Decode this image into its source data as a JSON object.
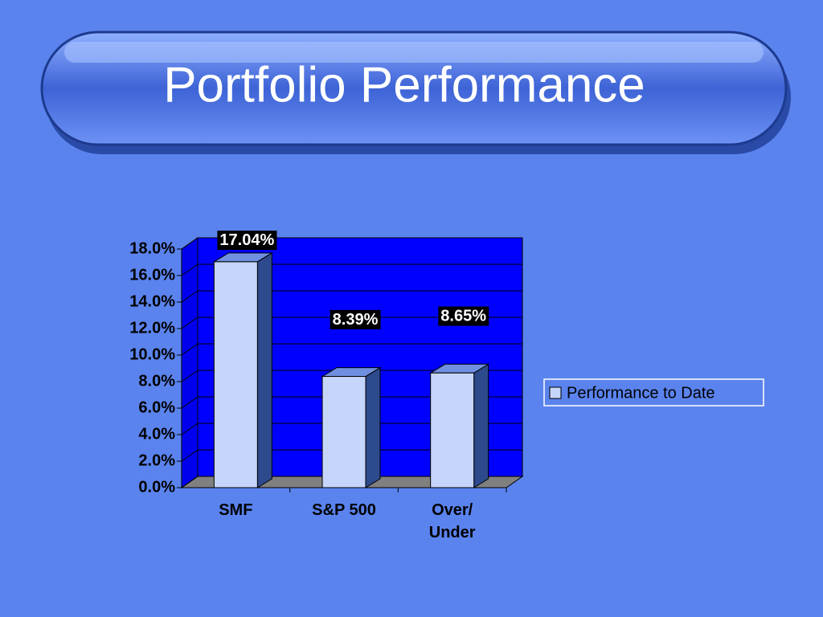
{
  "chart_data": {
    "type": "bar3d",
    "title": "Portfolio Performance",
    "categories": [
      "SMF",
      "S&P 500",
      "Over/ Under"
    ],
    "series": [
      {
        "name": "Performance to Date",
        "color": "#c6d5fb",
        "values": [
          17.04,
          8.39,
          8.65
        ],
        "value_labels": [
          "17.04%",
          "8.39%",
          "8.65%"
        ]
      }
    ],
    "ylim": [
      0,
      18
    ],
    "yticks": [
      {
        "value": 0,
        "label": "0.0%"
      },
      {
        "value": 2,
        "label": "2.0%"
      },
      {
        "value": 4,
        "label": "4.0%"
      },
      {
        "value": 6,
        "label": "6.0%"
      },
      {
        "value": 8,
        "label": "8.0%"
      },
      {
        "value": 10,
        "label": "10.0%"
      },
      {
        "value": 12,
        "label": "12.0%"
      },
      {
        "value": 14,
        "label": "14.0%"
      },
      {
        "value": 16,
        "label": "16.0%"
      },
      {
        "value": 18,
        "label": "18.0%"
      }
    ],
    "grid": true,
    "legend": "right"
  }
}
